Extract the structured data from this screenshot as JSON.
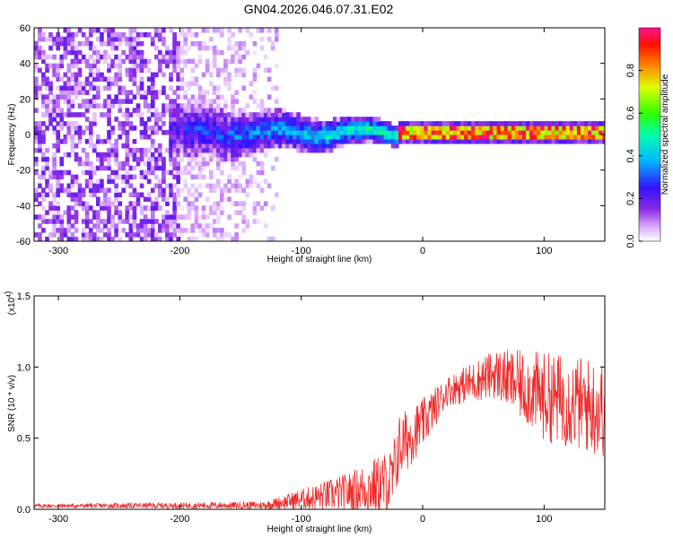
{
  "title": "GN04.2026.046.07.31.E02",
  "chart_data": [
    {
      "type": "heatmap",
      "name": "spectrogram",
      "xlabel": "Height of straight line (km)",
      "ylabel": "Frequency (Hz)",
      "xlim": [
        -320,
        150
      ],
      "ylim": [
        -60,
        60
      ],
      "xticks": [
        -300,
        -200,
        -100,
        0,
        100
      ],
      "yticks": [
        -60,
        -40,
        -20,
        0,
        20,
        40,
        60
      ],
      "colorbar": {
        "label": "Normalized spectral amplitude",
        "range": [
          0,
          1
        ],
        "ticks": [
          0.0,
          0.2,
          0.4,
          0.6,
          0.8
        ]
      },
      "description_bands": [
        {
          "x_range": [
            -320,
            -200
          ],
          "freq_range": [
            -60,
            60
          ],
          "amplitude": [
            0.05,
            0.2
          ]
        },
        {
          "x_range": [
            -200,
            -120
          ],
          "freq_range": [
            -60,
            60
          ],
          "amplitude": [
            0.02,
            0.1
          ]
        },
        {
          "x_range": [
            -200,
            -20
          ],
          "freq_range": [
            -15,
            15
          ],
          "amplitude": [
            0.2,
            0.6
          ]
        },
        {
          "x_range": [
            -20,
            150
          ],
          "freq_range": [
            -3,
            3
          ],
          "amplitude": [
            0.6,
            1.0
          ]
        }
      ]
    },
    {
      "type": "line",
      "name": "snr",
      "xlabel": "Height of straight line (km)",
      "ylabel": "SNR (10 * v/v)",
      "y_multiplier": "(x10",
      "y_multiplier_exp": "4",
      "xlim": [
        -320,
        150
      ],
      "ylim": [
        0,
        1.5
      ],
      "xticks": [
        -300,
        -200,
        -100,
        0,
        100
      ],
      "yticks": [
        0.0,
        0.5,
        1.0,
        1.5
      ],
      "ytick_labels": [
        "0.0",
        "0.5",
        "1.0",
        "1.5"
      ],
      "color": "#ee2a2a",
      "envelope": [
        {
          "x": -320,
          "base": 0.02,
          "amp": 0.02
        },
        {
          "x": -200,
          "base": 0.02,
          "amp": 0.03
        },
        {
          "x": -130,
          "base": 0.02,
          "amp": 0.04
        },
        {
          "x": -110,
          "base": 0.04,
          "amp": 0.08
        },
        {
          "x": -60,
          "base": 0.08,
          "amp": 0.2
        },
        {
          "x": -25,
          "base": 0.12,
          "amp": 0.35
        },
        {
          "x": -20,
          "base": 0.35,
          "amp": 0.35
        },
        {
          "x": 0,
          "base": 0.55,
          "amp": 0.25
        },
        {
          "x": 20,
          "base": 0.8,
          "amp": 0.15
        },
        {
          "x": 60,
          "base": 0.9,
          "amp": 0.25
        },
        {
          "x": 100,
          "base": 0.7,
          "amp": 0.45
        },
        {
          "x": 150,
          "base": 0.6,
          "amp": 0.5
        }
      ]
    }
  ]
}
